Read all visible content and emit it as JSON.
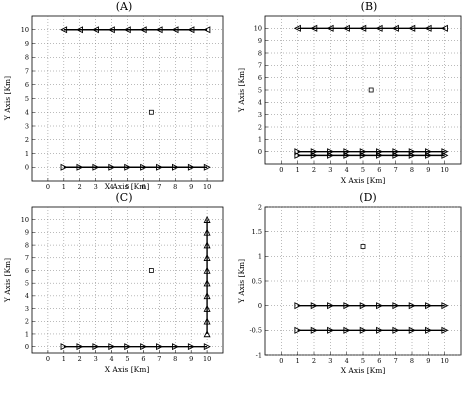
{
  "chart_data": [
    {
      "type": "scatter",
      "title": "(A)",
      "xlabel": "X Axis [Km]",
      "ylabel": "Y Axis [Km]",
      "xlim": [
        -1,
        11
      ],
      "ylim": [
        -1,
        11
      ],
      "xticks": [
        0,
        1,
        2,
        3,
        4,
        5,
        6,
        7,
        8,
        9,
        10
      ],
      "yticks": [
        0,
        1,
        2,
        3,
        4,
        5,
        6,
        7,
        8,
        9,
        10
      ],
      "grid": true,
      "series": [
        {
          "marker": "triangle-left",
          "x": [
            1,
            2,
            3,
            4,
            5,
            6,
            7,
            8,
            9,
            10
          ],
          "y": [
            10,
            10,
            10,
            10,
            10,
            10,
            10,
            10,
            10,
            10
          ]
        },
        {
          "marker": "triangle-right",
          "x": [
            1,
            2,
            3,
            4,
            5,
            6,
            7,
            8,
            9,
            10
          ],
          "y": [
            0,
            0,
            0,
            0,
            0,
            0,
            0,
            0,
            0,
            0
          ]
        },
        {
          "marker": "square",
          "x": [
            6.5
          ],
          "y": [
            4
          ]
        }
      ]
    },
    {
      "type": "scatter",
      "title": "(B)",
      "xlabel": "X Axis [Km]",
      "ylabel": "Y Axis [Km]",
      "xlim": [
        -1,
        11
      ],
      "ylim": [
        -1,
        11
      ],
      "xticks": [
        0,
        1,
        2,
        3,
        4,
        5,
        6,
        7,
        8,
        9,
        10
      ],
      "yticks": [
        0,
        1,
        2,
        3,
        4,
        5,
        6,
        7,
        8,
        9,
        10
      ],
      "grid": true,
      "series": [
        {
          "marker": "triangle-left",
          "x": [
            1,
            2,
            3,
            4,
            5,
            6,
            7,
            8,
            9,
            10
          ],
          "y": [
            10,
            10,
            10,
            10,
            10,
            10,
            10,
            10,
            10,
            10
          ]
        },
        {
          "marker": "triangle-right",
          "x": [
            1,
            2,
            3,
            4,
            5,
            6,
            7,
            8,
            9,
            10
          ],
          "y": [
            0,
            0,
            0,
            0,
            0,
            0,
            0,
            0,
            0,
            0
          ]
        },
        {
          "marker": "triangle-right",
          "x": [
            1,
            2,
            3,
            4,
            5,
            6,
            7,
            8,
            9,
            10
          ],
          "y": [
            -0.3,
            -0.3,
            -0.3,
            -0.3,
            -0.3,
            -0.3,
            -0.3,
            -0.3,
            -0.3,
            -0.3
          ]
        },
        {
          "marker": "square",
          "x": [
            5.5
          ],
          "y": [
            5
          ]
        }
      ]
    },
    {
      "type": "scatter",
      "title": "(C)",
      "xlabel": "X Axis [Km]",
      "ylabel": "Y Axis [Km]",
      "xlim": [
        -1,
        11
      ],
      "ylim": [
        -0.5,
        11
      ],
      "xticks": [
        0,
        1,
        2,
        3,
        4,
        5,
        6,
        7,
        8,
        9,
        10
      ],
      "yticks": [
        0,
        1,
        2,
        3,
        4,
        5,
        6,
        7,
        8,
        9,
        10
      ],
      "grid": true,
      "series": [
        {
          "marker": "triangle-right",
          "x": [
            1,
            2,
            3,
            4,
            5,
            6,
            7,
            8,
            9,
            10
          ],
          "y": [
            0,
            0,
            0,
            0,
            0,
            0,
            0,
            0,
            0,
            0
          ]
        },
        {
          "marker": "triangle-up",
          "x": [
            10,
            10,
            10,
            10,
            10,
            10,
            10,
            10,
            10,
            10
          ],
          "y": [
            1,
            2,
            3,
            4,
            5,
            6,
            7,
            8,
            9,
            10
          ]
        },
        {
          "marker": "square",
          "x": [
            6.5
          ],
          "y": [
            6
          ]
        }
      ]
    },
    {
      "type": "scatter",
      "title": "(D)",
      "xlabel": "X Axis [Km]",
      "ylabel": "Y Axis [Km]",
      "xlim": [
        -1,
        11
      ],
      "ylim": [
        -1,
        2
      ],
      "xticks": [
        0,
        1,
        2,
        3,
        4,
        5,
        6,
        7,
        8,
        9,
        10
      ],
      "yticks": [
        -1,
        -0.5,
        0,
        0.5,
        1,
        1.5,
        2
      ],
      "grid": true,
      "series": [
        {
          "marker": "triangle-right",
          "x": [
            1,
            2,
            3,
            4,
            5,
            6,
            7,
            8,
            9,
            10
          ],
          "y": [
            0,
            0,
            0,
            0,
            0,
            0,
            0,
            0,
            0,
            0
          ]
        },
        {
          "marker": "triangle-right",
          "x": [
            1,
            2,
            3,
            4,
            5,
            6,
            7,
            8,
            9,
            10
          ],
          "y": [
            -0.5,
            -0.5,
            -0.5,
            -0.5,
            -0.5,
            -0.5,
            -0.5,
            -0.5,
            -0.5,
            -0.5
          ]
        },
        {
          "marker": "square",
          "x": [
            5
          ],
          "y": [
            1.2
          ]
        }
      ]
    }
  ]
}
